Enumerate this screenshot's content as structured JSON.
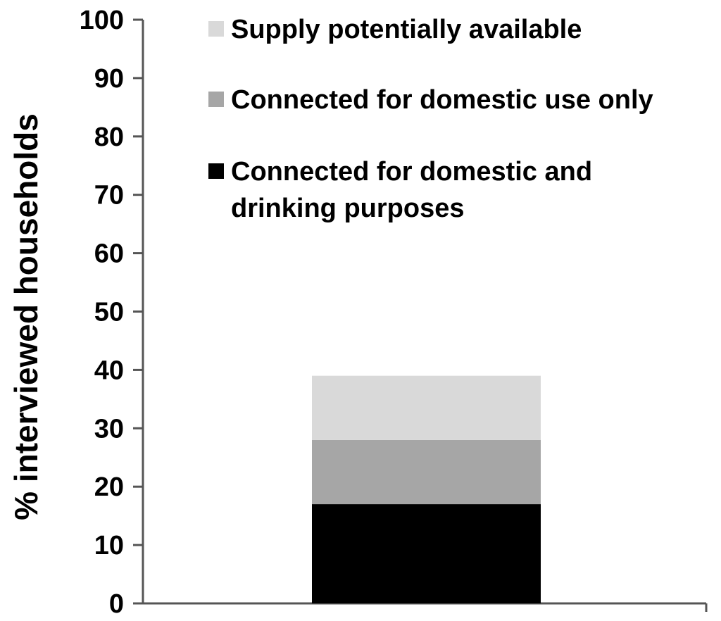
{
  "chart_data": {
    "type": "bar",
    "stacked": true,
    "categories": [
      ""
    ],
    "series": [
      {
        "name": "Connected for domestic and drinking purposes",
        "values": [
          17
        ],
        "color": "#000000"
      },
      {
        "name": "Connected for domestic use only",
        "values": [
          11
        ],
        "color": "#a6a6a6"
      },
      {
        "name": "Supply potentially available",
        "values": [
          11
        ],
        "color": "#d9d9d9"
      }
    ],
    "ylabel": "% interviewed households",
    "xlabel": "",
    "ylim": [
      0,
      100
    ],
    "yticks": [
      "0",
      "10",
      "20",
      "30",
      "40",
      "50",
      "60",
      "70",
      "80",
      "90",
      "100"
    ],
    "grid": false,
    "legend": {
      "placement": "top",
      "entries": [
        {
          "lines": [
            "Supply potentially  available"
          ],
          "color": "#d9d9d9"
        },
        {
          "lines": [
            "Connected for domestic use only"
          ],
          "color": "#a6a6a6"
        },
        {
          "lines": [
            "Connected for domestic and",
            "drinking purposes"
          ],
          "color": "#000000"
        }
      ]
    }
  }
}
